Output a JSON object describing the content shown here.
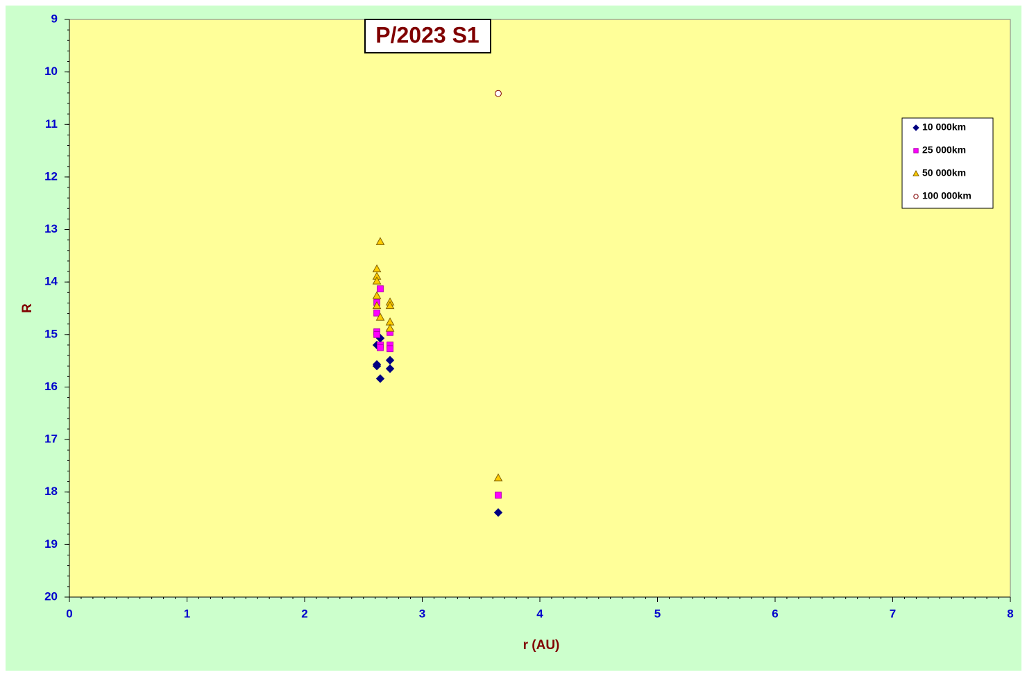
{
  "chart_data": {
    "type": "scatter",
    "title": "P/2023 S1",
    "x_label": "r (AU)",
    "y_label": "R",
    "xlim": [
      0,
      8
    ],
    "xticks": [
      0,
      1,
      2,
      3,
      4,
      5,
      6,
      7,
      8
    ],
    "x_minor_step": 0.1,
    "ylim": [
      9,
      20
    ],
    "yticks": [
      9,
      10,
      11,
      12,
      13,
      14,
      15,
      16,
      17,
      18,
      19,
      20
    ],
    "y_minor_step": 0.2,
    "y_reversed": true,
    "legend": "right",
    "series": [
      {
        "name": "10 000km",
        "color": "#000080",
        "marker": "diamond",
        "x": [
          2.614,
          2.614,
          2.643,
          2.643,
          2.614,
          2.726,
          2.726,
          3.646
        ],
        "values": [
          15.57,
          15.6,
          15.84,
          15.07,
          15.2,
          15.49,
          15.65,
          18.39
        ]
      },
      {
        "name": "25 000km",
        "color": "#ff00ff",
        "marker": "square",
        "x": [
          2.643,
          2.614,
          2.614,
          2.614,
          2.614,
          2.643,
          2.643,
          2.726,
          2.726,
          2.726,
          3.646
        ],
        "values": [
          14.13,
          14.39,
          14.59,
          14.95,
          15.0,
          15.2,
          15.25,
          14.96,
          15.2,
          15.27,
          18.06
        ]
      },
      {
        "name": "50 000km",
        "color": "#ffcc00",
        "marker": "triangle",
        "x": [
          2.643,
          2.614,
          2.614,
          2.614,
          2.614,
          2.614,
          2.643,
          2.726,
          2.726,
          2.726,
          2.726,
          3.646
        ],
        "values": [
          13.23,
          13.75,
          13.89,
          13.98,
          14.26,
          14.45,
          14.67,
          14.38,
          14.45,
          14.76,
          14.88,
          17.73
        ]
      },
      {
        "name": "100 000km",
        "color": "#ffffff",
        "marker": "circle",
        "x": [
          3.646
        ],
        "values": [
          10.41
        ]
      }
    ]
  }
}
